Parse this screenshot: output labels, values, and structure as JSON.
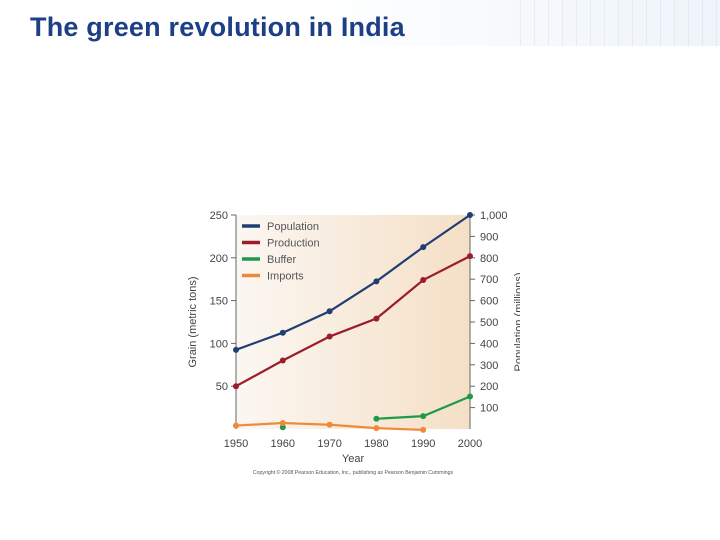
{
  "slide": {
    "title": "The green revolution in India"
  },
  "chart_data": {
    "type": "line",
    "xlabel": "Year",
    "ylabel_left": "Grain (metric tons)",
    "ylabel_right": "Population (millions)",
    "x_ticks": [
      1950,
      1960,
      1970,
      1980,
      1990,
      2000
    ],
    "y_left_ticks": [
      50,
      100,
      150,
      200,
      250
    ],
    "y_right_ticks": [
      "100",
      "200",
      "300",
      "400",
      "500",
      "600",
      "700",
      "800",
      "900",
      "1,000"
    ],
    "ylim_left": [
      0,
      250
    ],
    "ylim_right": [
      0,
      1000
    ],
    "xlim": [
      1950,
      2000
    ],
    "legend_position": "top-left",
    "series": [
      {
        "name": "Population",
        "axis": "right",
        "color": "#1f3f74",
        "x": [
          1950,
          1960,
          1970,
          1980,
          1990,
          2000
        ],
        "values": [
          370,
          450,
          550,
          690,
          850,
          1000
        ]
      },
      {
        "name": "Production",
        "axis": "left",
        "color": "#9b1c2a",
        "x": [
          1950,
          1960,
          1970,
          1980,
          1990,
          2000
        ],
        "values": [
          50,
          80,
          108,
          129,
          174,
          202
        ]
      },
      {
        "name": "Buffer",
        "axis": "left",
        "color": "#1e9a4a",
        "x": [
          1960,
          1980,
          1990,
          2000
        ],
        "values": [
          2,
          12,
          15,
          38
        ]
      },
      {
        "name": "Imports",
        "axis": "left",
        "color": "#f08a3a",
        "x": [
          1950,
          1960,
          1970,
          1980,
          1990
        ],
        "values": [
          4,
          7,
          5,
          1,
          -1
        ]
      }
    ],
    "footer": "Copyright © 2008 Pearson Education, Inc., publishing as Pearson Benjamin Cummings"
  }
}
